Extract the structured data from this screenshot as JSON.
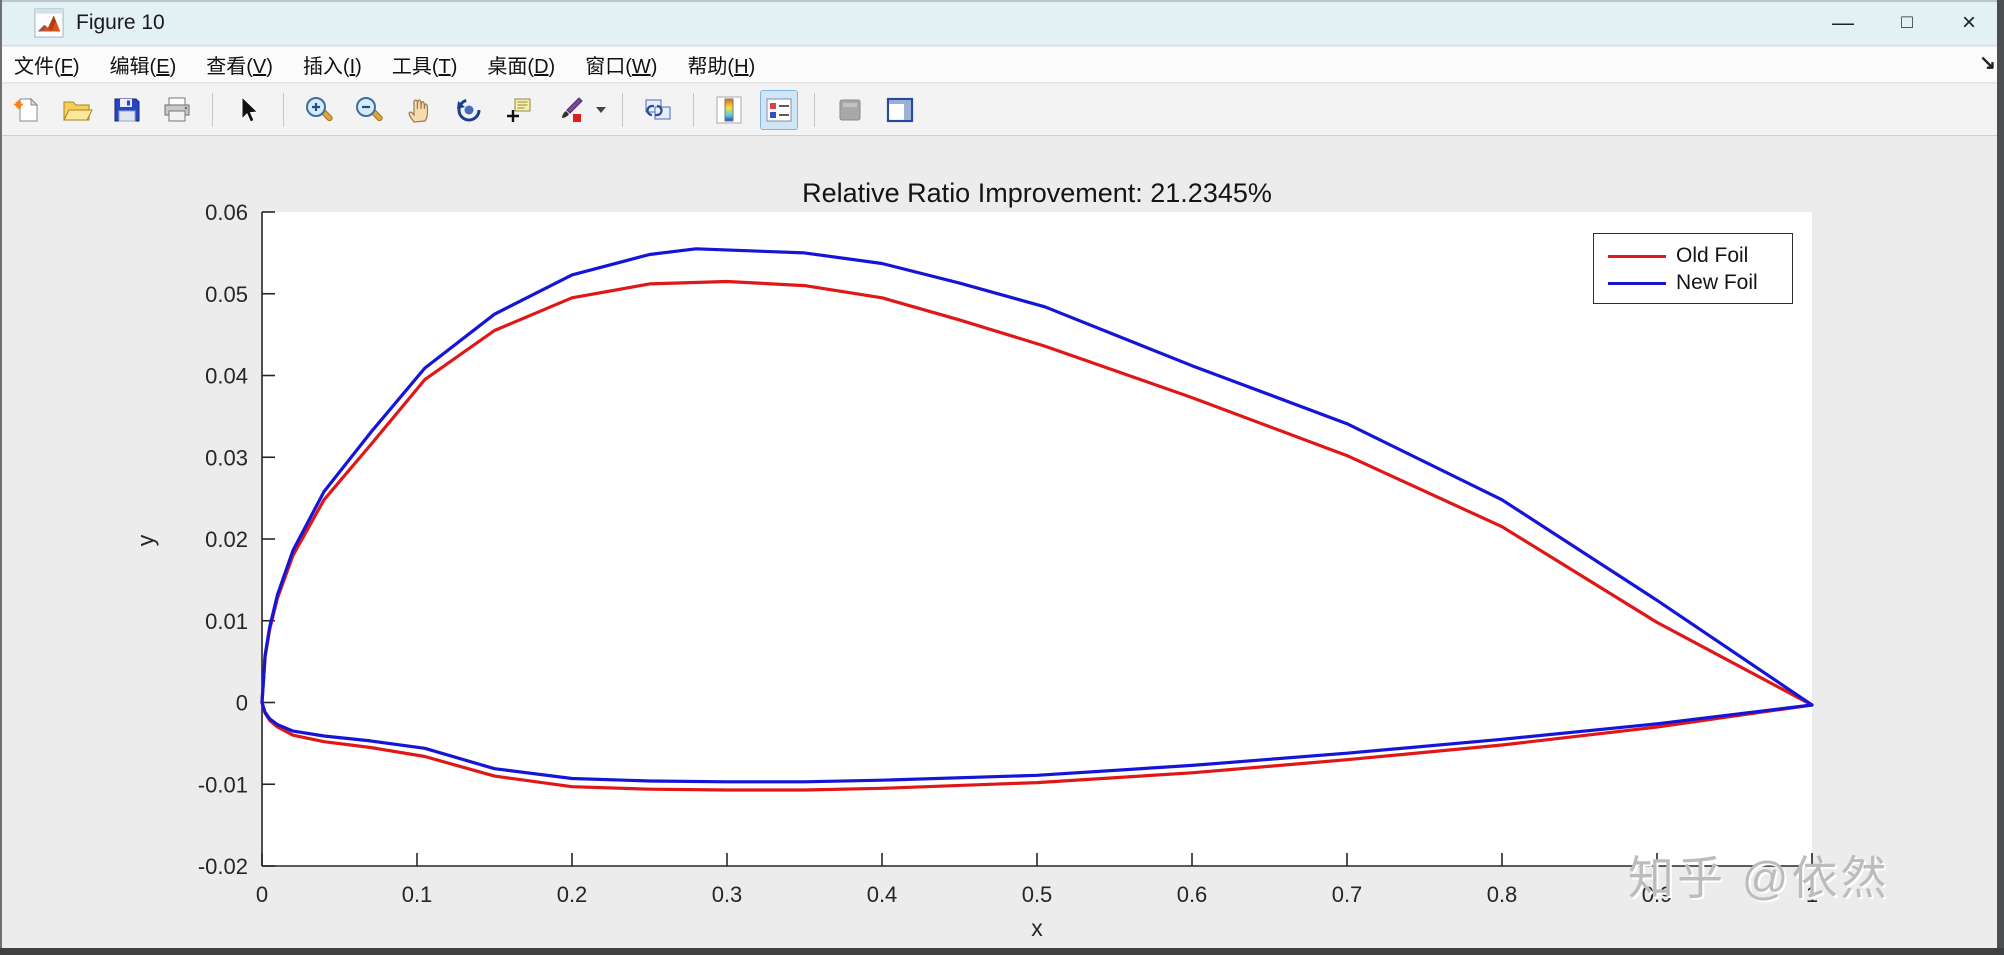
{
  "window": {
    "title": "Figure 10",
    "controls": {
      "minimize": "—",
      "maximize": "□",
      "close": "×"
    },
    "dock_glyph": "↘"
  },
  "menu": {
    "items": [
      "文件(F)",
      "编辑(E)",
      "查看(V)",
      "插入(I)",
      "工具(T)",
      "桌面(D)",
      "窗口(W)",
      "帮助(H)"
    ]
  },
  "toolbar": {
    "icons": [
      "new-figure",
      "open-file",
      "save-figure",
      "print-figure",
      "pointer",
      "zoom-in",
      "zoom-out",
      "pan",
      "rotate-3d",
      "data-cursor",
      "brush",
      "link-plots",
      "insert-colorbar",
      "insert-legend",
      "hide-plot-tools",
      "show-plot-tools"
    ],
    "active_icon": "insert-legend",
    "disabled_icon": "hide-plot-tools"
  },
  "watermark": {
    "text": "知乎 @依然"
  },
  "colors": {
    "titlebar": "#e4f1f4",
    "figure_bg": "#ececec",
    "axis": "#262626"
  },
  "chart_data": {
    "type": "line",
    "title": "Relative Ratio Improvement: 21.2345%",
    "xlabel": "x",
    "ylabel": "y",
    "xlim": [
      0,
      1
    ],
    "ylim": [
      -0.02,
      0.06
    ],
    "x_ticks": [
      0,
      0.1,
      0.2,
      0.3,
      0.4,
      0.5,
      0.6,
      0.7,
      0.8,
      0.9,
      1
    ],
    "y_ticks": [
      -0.02,
      -0.01,
      0,
      0.01,
      0.02,
      0.03,
      0.04,
      0.05,
      0.06
    ],
    "grid": false,
    "legend_position": "northeast",
    "series": [
      {
        "name": "Old Foil",
        "color": "#e01717",
        "description": "airfoil outline: upper surface leading-to-trailing edge, then lower surface back",
        "x": [
          0,
          0.002,
          0.005,
          0.01,
          0.02,
          0.04,
          0.07,
          0.105,
          0.15,
          0.2,
          0.25,
          0.3,
          0.35,
          0.4,
          0.45,
          0.505,
          0.6,
          0.7,
          0.8,
          0.9,
          1.0,
          0.9,
          0.8,
          0.7,
          0.6,
          0.5,
          0.4,
          0.35,
          0.3,
          0.25,
          0.2,
          0.15,
          0.105,
          0.07,
          0.04,
          0.02,
          0.01,
          0.005,
          0.002,
          0
        ],
        "y": [
          0,
          0.0056,
          0.009,
          0.0128,
          0.018,
          0.0248,
          0.0315,
          0.0395,
          0.0455,
          0.0495,
          0.0512,
          0.0515,
          0.051,
          0.0495,
          0.0468,
          0.0436,
          0.0373,
          0.0302,
          0.0215,
          0.0098,
          -0.0003,
          -0.003,
          -0.0052,
          -0.007,
          -0.0086,
          -0.0098,
          -0.0105,
          -0.0107,
          -0.0107,
          -0.0106,
          -0.0103,
          -0.009,
          -0.0066,
          -0.0055,
          -0.0048,
          -0.004,
          -0.003,
          -0.0022,
          -0.0013,
          0
        ]
      },
      {
        "name": "New Foil",
        "color": "#1515d8",
        "description": "airfoil outline: upper surface leading-to-trailing edge, then lower surface back",
        "x": [
          0,
          0.002,
          0.005,
          0.01,
          0.02,
          0.04,
          0.07,
          0.105,
          0.15,
          0.2,
          0.25,
          0.28,
          0.35,
          0.4,
          0.45,
          0.505,
          0.6,
          0.7,
          0.8,
          0.9,
          1.0,
          0.9,
          0.8,
          0.7,
          0.6,
          0.5,
          0.4,
          0.35,
          0.3,
          0.25,
          0.2,
          0.15,
          0.105,
          0.07,
          0.04,
          0.02,
          0.01,
          0.005,
          0.002,
          0
        ],
        "y": [
          0,
          0.0058,
          0.0093,
          0.0132,
          0.0186,
          0.0258,
          0.033,
          0.0409,
          0.0475,
          0.0523,
          0.0548,
          0.0555,
          0.055,
          0.0537,
          0.0513,
          0.0484,
          0.0412,
          0.0341,
          0.0248,
          0.0125,
          -0.0003,
          -0.0026,
          -0.0045,
          -0.0062,
          -0.0077,
          -0.0089,
          -0.0095,
          -0.0097,
          -0.0097,
          -0.0096,
          -0.0093,
          -0.0081,
          -0.0056,
          -0.0047,
          -0.0041,
          -0.0035,
          -0.0027,
          -0.002,
          -0.0012,
          0
        ]
      }
    ]
  }
}
